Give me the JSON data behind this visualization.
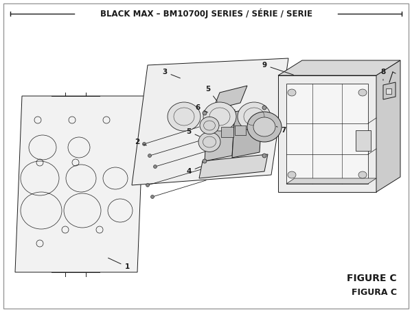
{
  "title": "BLACK MAX – BM10700J SERIES / SÉRIE / SERIE",
  "figure_label": "FIGURE C",
  "figura_label": "FIGURA C",
  "bg_color": "#ffffff",
  "line_color": "#1a1a1a",
  "title_fontsize": 8.5,
  "annotation_fontsize": 7.5,
  "figure_c_fontsize": 10
}
